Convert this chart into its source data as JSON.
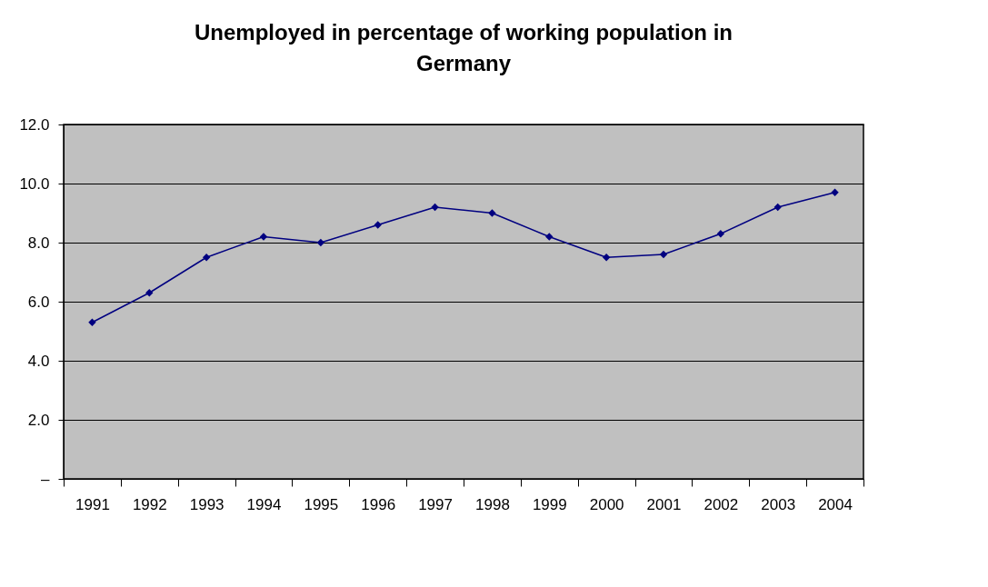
{
  "chart_data": {
    "type": "line",
    "title": "Unemployed in percentage of working population in Germany",
    "categories": [
      "1991",
      "1992",
      "1993",
      "1994",
      "1995",
      "1996",
      "1997",
      "1998",
      "1999",
      "2000",
      "2001",
      "2002",
      "2003",
      "2004"
    ],
    "series": [
      {
        "color": "#000080",
        "values": [
          5.3,
          6.3,
          7.5,
          8.2,
          8.0,
          8.6,
          9.2,
          9.0,
          8.2,
          7.5,
          7.6,
          8.3,
          9.2,
          9.7
        ]
      }
    ],
    "ylim": [
      0,
      12
    ],
    "yticks": [
      {
        "value": 0,
        "label": "–"
      },
      {
        "value": 2,
        "label": "2.0"
      },
      {
        "value": 4,
        "label": "4.0"
      },
      {
        "value": 6,
        "label": "6.0"
      },
      {
        "value": 8,
        "label": "8.0"
      },
      {
        "value": 10,
        "label": "10.0"
      },
      {
        "value": 12,
        "label": "12.0"
      }
    ],
    "grid": "y",
    "marker": "diamond",
    "line_style": "solid"
  }
}
